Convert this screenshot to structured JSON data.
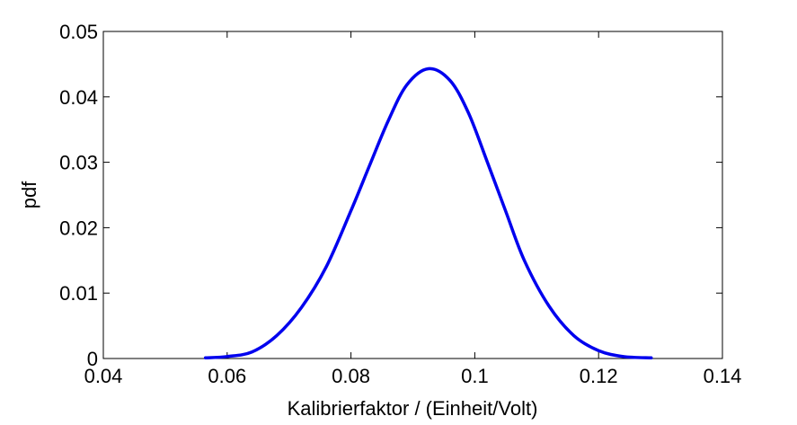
{
  "chart_data": {
    "type": "line",
    "xlabel": "Kalibrierfaktor / (Einheit/Volt)",
    "ylabel": "pdf",
    "xlim": [
      0.04,
      0.14
    ],
    "ylim": [
      0,
      0.05
    ],
    "xticks": [
      0.04,
      0.06,
      0.08,
      0.1,
      0.12,
      0.14
    ],
    "xtick_labels": [
      "0.04",
      "0.06",
      "0.08",
      "0.1",
      "0.12",
      "0.14"
    ],
    "yticks": [
      0,
      0.01,
      0.02,
      0.03,
      0.04,
      0.05
    ],
    "ytick_labels": [
      "0",
      "0.01",
      "0.02",
      "0.03",
      "0.04",
      "0.05"
    ],
    "grid": false,
    "legend": "none",
    "series": [
      {
        "color": "#0000ee",
        "x": [
          0.0565,
          0.06,
          0.064,
          0.068,
          0.072,
          0.076,
          0.08,
          0.083,
          0.086,
          0.089,
          0.0925,
          0.096,
          0.099,
          0.102,
          0.105,
          0.108,
          0.112,
          0.116,
          0.12,
          0.124,
          0.1285
        ],
        "y": [
          0.0001,
          0.0003,
          0.001,
          0.0035,
          0.0078,
          0.014,
          0.0226,
          0.0295,
          0.0363,
          0.0418,
          0.0443,
          0.0425,
          0.0375,
          0.0301,
          0.0225,
          0.015,
          0.008,
          0.0035,
          0.0012,
          0.0003,
          0.0001
        ]
      }
    ]
  }
}
